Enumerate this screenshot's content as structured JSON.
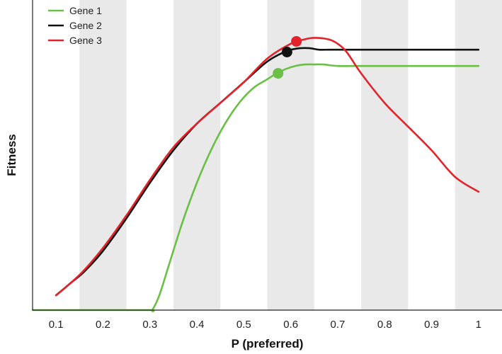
{
  "chart_data": {
    "type": "line",
    "title": "",
    "xlabel": "P (preferred)",
    "ylabel": "Fitness",
    "xlim": [
      0.05,
      1.05
    ],
    "ylim": [
      0,
      1.0
    ],
    "x_ticks": [
      "0.1",
      "0.2",
      "0.3",
      "0.4",
      "0.5",
      "0.6",
      "0.7",
      "0.8",
      "0.9",
      "1"
    ],
    "y_ticks_shown": false,
    "background": "alternating vertical grey bands",
    "legend": {
      "position": "top-left"
    },
    "series": [
      {
        "name": "Gene 1",
        "color": "#6abf45",
        "x": [
          0.05,
          0.2,
          0.3,
          0.305,
          0.32,
          0.34,
          0.37,
          0.4,
          0.43,
          0.46,
          0.49,
          0.52,
          0.55,
          0.57,
          0.59,
          0.61,
          0.63,
          0.65,
          0.67,
          0.7,
          0.75,
          0.8,
          0.9,
          1.0
        ],
        "values": [
          0.0,
          0.0,
          0.0,
          0.0,
          0.05,
          0.15,
          0.3,
          0.43,
          0.54,
          0.63,
          0.7,
          0.75,
          0.78,
          0.8,
          0.815,
          0.825,
          0.83,
          0.83,
          0.83,
          0.825,
          0.825,
          0.825,
          0.825,
          0.825
        ],
        "marker": {
          "x": 0.573,
          "y": 0.8
        }
      },
      {
        "name": "Gene 2",
        "color": "#111111",
        "x": [
          0.1,
          0.13,
          0.16,
          0.2,
          0.25,
          0.3,
          0.35,
          0.4,
          0.45,
          0.5,
          0.55,
          0.59,
          0.6,
          0.62,
          0.64,
          0.66,
          0.68,
          0.7,
          0.8,
          0.9,
          1.0
        ],
        "values": [
          0.05,
          0.09,
          0.13,
          0.2,
          0.31,
          0.43,
          0.54,
          0.63,
          0.7,
          0.77,
          0.84,
          0.875,
          0.88,
          0.885,
          0.885,
          0.88,
          0.88,
          0.88,
          0.88,
          0.88,
          0.88
        ],
        "marker": {
          "x": 0.592,
          "y": 0.872
        }
      },
      {
        "name": "Gene 3",
        "color": "#e3232c",
        "x": [
          0.1,
          0.13,
          0.16,
          0.2,
          0.25,
          0.3,
          0.35,
          0.4,
          0.45,
          0.5,
          0.55,
          0.6,
          0.63,
          0.65,
          0.68,
          0.7,
          0.72,
          0.75,
          0.8,
          0.85,
          0.9,
          0.95,
          1.0
        ],
        "values": [
          0.05,
          0.09,
          0.135,
          0.21,
          0.32,
          0.44,
          0.55,
          0.63,
          0.7,
          0.77,
          0.85,
          0.9,
          0.915,
          0.92,
          0.915,
          0.9,
          0.87,
          0.8,
          0.7,
          0.62,
          0.54,
          0.45,
          0.4
        ],
        "marker": {
          "x": 0.612,
          "y": 0.908
        }
      }
    ]
  }
}
